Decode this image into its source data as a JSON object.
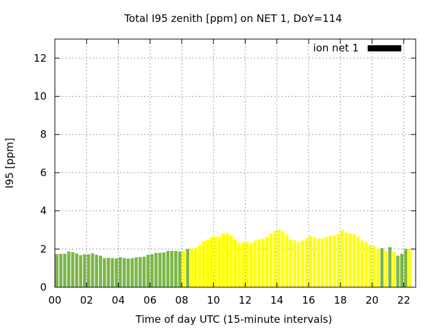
{
  "chart_data": {
    "type": "bar",
    "title": "Total I95 zenith [ppm] on NET 1, DoY=114",
    "xlabel": "Time of day UTC (15-minute intervals)",
    "ylabel": "I95 [ppm]",
    "xlim": [
      0,
      22.75
    ],
    "ylim": [
      0,
      13
    ],
    "xticks": [
      0,
      2,
      4,
      6,
      8,
      10,
      12,
      14,
      16,
      18,
      20,
      22
    ],
    "xtick_labels": [
      "00",
      "02",
      "04",
      "06",
      "08",
      "10",
      "12",
      "14",
      "16",
      "18",
      "20",
      "22"
    ],
    "yticks": [
      0,
      2,
      4,
      6,
      8,
      10,
      12
    ],
    "ytick_labels": [
      "0",
      "2",
      "4",
      "6",
      "8",
      "10",
      "12"
    ],
    "grid": true,
    "legend": {
      "position": "top-right",
      "entries": [
        {
          "label": "ion net 1",
          "color": "#000000"
        }
      ]
    },
    "bar_interval_hours": 0.25,
    "colors": {
      "green": "#7ab648",
      "yellow": "#ffff00"
    },
    "series": [
      {
        "values": [
          1.73,
          1.75,
          1.75,
          1.87,
          1.83,
          1.76,
          1.68,
          1.72,
          1.72,
          1.78,
          1.7,
          1.65,
          1.52,
          1.54,
          1.52,
          1.51,
          1.57,
          1.52,
          1.5,
          1.52,
          1.56,
          1.58,
          1.6,
          1.7,
          1.73,
          1.8,
          1.8,
          1.82,
          1.9,
          1.9,
          1.9,
          1.87,
          1.9,
          2.0,
          2.0,
          2.05,
          2.2,
          2.4,
          2.5,
          2.6,
          2.65,
          2.65,
          2.8,
          2.8,
          2.7,
          2.5,
          2.3,
          2.35,
          2.35,
          2.32,
          2.45,
          2.5,
          2.55,
          2.62,
          2.8,
          2.95,
          3.02,
          2.95,
          2.75,
          2.5,
          2.45,
          2.35,
          2.45,
          2.55,
          2.68,
          2.6,
          2.55,
          2.55,
          2.62,
          2.7,
          2.7,
          2.8,
          3.0,
          2.85,
          2.82,
          2.78,
          2.65,
          2.45,
          2.35,
          2.2,
          2.15,
          2.02,
          2.05,
          1.9,
          2.1,
          1.85,
          1.65,
          1.75,
          2.0,
          2.0
        ],
        "colors": [
          "green",
          "green",
          "green",
          "green",
          "green",
          "green",
          "green",
          "green",
          "green",
          "green",
          "green",
          "green",
          "green",
          "green",
          "green",
          "green",
          "green",
          "green",
          "green",
          "green",
          "green",
          "green",
          "green",
          "green",
          "green",
          "green",
          "green",
          "green",
          "green",
          "green",
          "green",
          "green",
          "yellow",
          "green",
          "yellow",
          "yellow",
          "yellow",
          "yellow",
          "yellow",
          "yellow",
          "yellow",
          "yellow",
          "yellow",
          "yellow",
          "yellow",
          "yellow",
          "yellow",
          "yellow",
          "yellow",
          "yellow",
          "yellow",
          "yellow",
          "yellow",
          "yellow",
          "yellow",
          "yellow",
          "yellow",
          "yellow",
          "yellow",
          "yellow",
          "yellow",
          "yellow",
          "yellow",
          "yellow",
          "yellow",
          "yellow",
          "yellow",
          "yellow",
          "yellow",
          "yellow",
          "yellow",
          "yellow",
          "yellow",
          "yellow",
          "yellow",
          "yellow",
          "yellow",
          "yellow",
          "yellow",
          "yellow",
          "yellow",
          "yellow",
          "green",
          "yellow",
          "green",
          "yellow",
          "green",
          "green",
          "green",
          "yellow"
        ]
      }
    ]
  }
}
